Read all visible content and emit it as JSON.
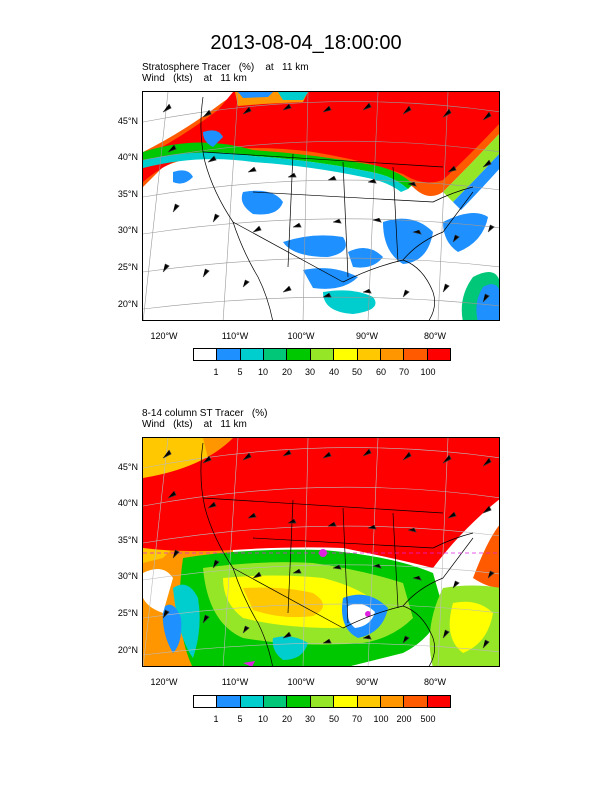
{
  "page": {
    "title": "2013-08-04_18:00:00"
  },
  "panel1": {
    "title_line1": "Stratosphere Tracer   (%)    at   11 km",
    "title_line2": "Wind   (kts)    at   11 km",
    "lat_labels": [
      "45°N",
      "40°N",
      "35°N",
      "30°N",
      "25°N",
      "20°N"
    ],
    "lon_labels": [
      "120°W",
      "110°W",
      "100°W",
      "90°W",
      "80°W"
    ],
    "legend_labels": [
      "1",
      "5",
      "10",
      "20",
      "30",
      "40",
      "50",
      "60",
      "70",
      "100"
    ],
    "legend_colors": [
      "#ffffff",
      "#1e90ff",
      "#00cdcd",
      "#00c878",
      "#00c800",
      "#96e628",
      "#ffff00",
      "#ffc800",
      "#ff9600",
      "#ff5a00",
      "#ff0000"
    ]
  },
  "panel2": {
    "title_line1": "8-14 column ST Tracer   (%)",
    "title_line2": "Wind   (kts)    at   11 km",
    "lat_labels": [
      "45°N",
      "40°N",
      "35°N",
      "30°N",
      "25°N",
      "20°N"
    ],
    "lon_labels": [
      "120°W",
      "110°W",
      "100°W",
      "90°W",
      "80°W"
    ],
    "legend_labels": [
      "1",
      "5",
      "10",
      "20",
      "30",
      "50",
      "70",
      "100",
      "200",
      "500"
    ],
    "legend_colors": [
      "#ffffff",
      "#1e90ff",
      "#00cdcd",
      "#00c878",
      "#00c800",
      "#96e628",
      "#ffff00",
      "#ffc800",
      "#ff9600",
      "#ff5a00",
      "#ff0000"
    ]
  },
  "colors": {
    "red": "#ff0000",
    "orange": "#ff9600",
    "orange_red": "#ff5a00",
    "gold": "#ffc800",
    "yellow": "#ffff00",
    "lime": "#96e628",
    "green": "#00c800",
    "teal": "#00c878",
    "cyan": "#00cdcd",
    "blue": "#1e90ff",
    "magenta": "#e020e0"
  }
}
